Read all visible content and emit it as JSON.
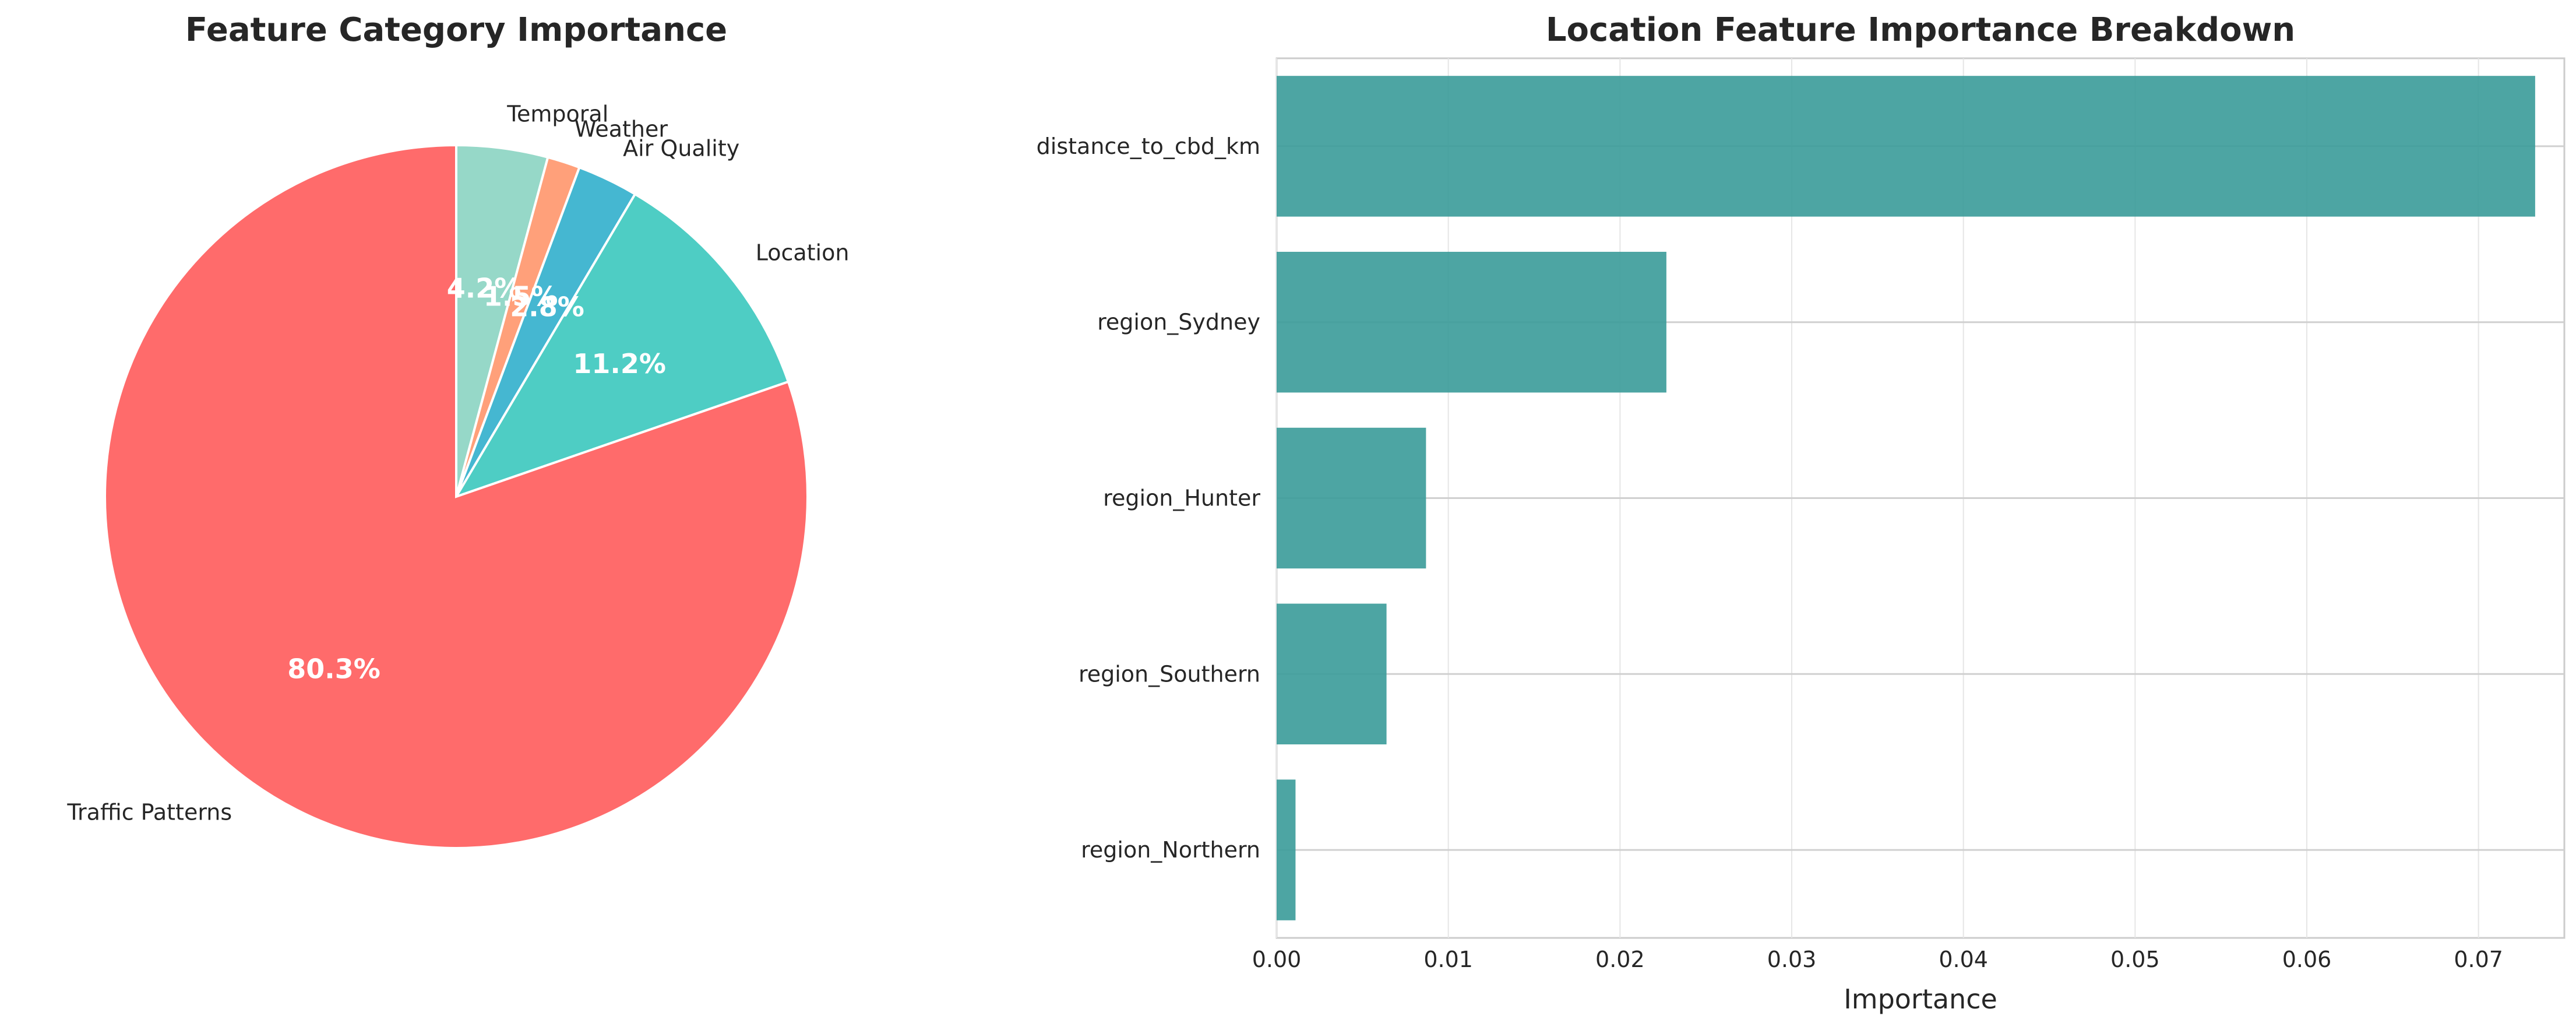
{
  "chart_data": [
    {
      "type": "pie",
      "title": "Feature Category Importance",
      "start_angle_deg": 90,
      "direction": "clockwise",
      "slices": [
        {
          "label": "Temporal",
          "value": 4.2,
          "pct_label": "4.2%",
          "color": "#96D8C8"
        },
        {
          "label": "Weather",
          "value": 1.5,
          "pct_label": "1.5%",
          "color": "#FFA07A"
        },
        {
          "label": "Air Quality",
          "value": 2.8,
          "pct_label": "2.8%",
          "color": "#45B7D1"
        },
        {
          "label": "Location",
          "value": 11.2,
          "pct_label": "11.2%",
          "color": "#4ECDC4"
        },
        {
          "label": "Traffic Patterns",
          "value": 80.3,
          "pct_label": "80.3%",
          "color": "#FF6B6B"
        }
      ]
    },
    {
      "type": "bar",
      "orientation": "horizontal",
      "title": "Location Feature Importance Breakdown",
      "xlabel": "Importance",
      "ylabel": "",
      "categories": [
        "distance_to_cbd_km",
        "region_Sydney",
        "region_Hunter",
        "region_Southern",
        "region_Northern"
      ],
      "values": [
        0.0733,
        0.0227,
        0.0087,
        0.0064,
        0.0011
      ],
      "xlim": [
        0,
        0.075
      ],
      "xticks": [
        "0.00",
        "0.01",
        "0.02",
        "0.03",
        "0.04",
        "0.05",
        "0.06",
        "0.07"
      ],
      "bar_color": "#3A9B99",
      "grid": true
    }
  ]
}
